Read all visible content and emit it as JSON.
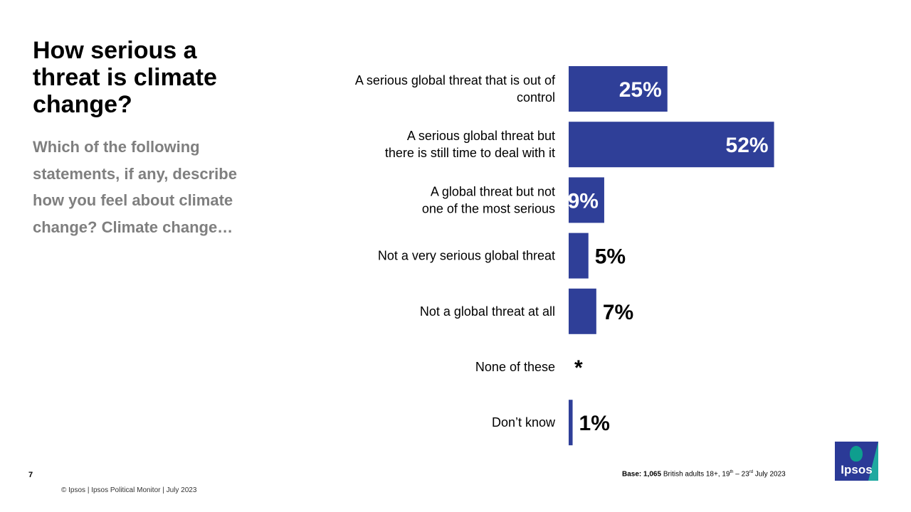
{
  "header": {
    "title": "How serious a threat is climate change?",
    "subtitle": "Which of the following statements, if any, describe how you feel about climate change? Climate change…"
  },
  "chart_data": {
    "type": "bar",
    "orientation": "horizontal",
    "categories": [
      "A serious global threat that is out of control",
      "A serious global threat but there is still time to deal with it",
      "A global threat but not one of the most serious",
      "Not a very serious global threat",
      "Not a global threat at all",
      "None of these",
      "Don’t know"
    ],
    "category_lines": [
      [
        "A serious global threat that is out of",
        "control"
      ],
      [
        "A serious global threat but",
        "there is still time to deal with it"
      ],
      [
        "A global threat but not",
        "one of the most serious"
      ],
      [
        "Not a very serious global threat"
      ],
      [
        "Not a global threat at all"
      ],
      [
        "None of these"
      ],
      [
        "Don’t know"
      ]
    ],
    "values": [
      25,
      52,
      9,
      5,
      7,
      0,
      1
    ],
    "value_labels": [
      "25%",
      "52%",
      "9%",
      "5%",
      "7%",
      "*",
      "1%"
    ],
    "unit": "%",
    "bar_color": "#2f3f98",
    "grid": false,
    "legend": "none"
  },
  "footer": {
    "page_number": "7",
    "copyright": "© Ipsos | Ipsos Political Monitor | July 2023",
    "base_label": "Base:",
    "base_count": "1,065",
    "base_text_1": " British adults 18+, 19",
    "base_sup_1": "th",
    "base_text_2": " – 23",
    "base_sup_2": "rd",
    "base_text_3": " July 2023"
  },
  "logo": {
    "text": "Ipsos",
    "brand_color": "#2b3a97",
    "accent_color": "#1fa9a0"
  }
}
